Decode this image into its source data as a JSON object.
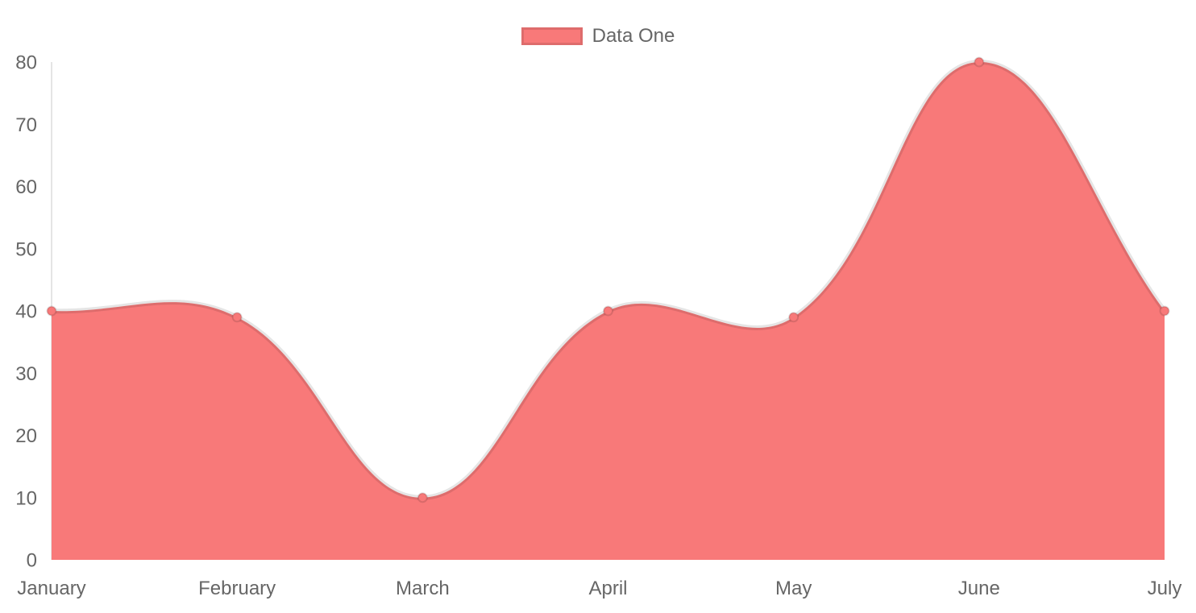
{
  "chart_data": {
    "type": "area",
    "title": "",
    "xlabel": "",
    "ylabel": "",
    "categories": [
      "January",
      "February",
      "March",
      "April",
      "May",
      "June",
      "July"
    ],
    "series": [
      {
        "name": "Data One",
        "values": [
          40,
          39,
          10,
          40,
          39,
          80,
          40
        ]
      }
    ],
    "ylim": [
      0,
      80
    ],
    "y_ticks": [
      0,
      10,
      20,
      30,
      40,
      50,
      60,
      70,
      80
    ],
    "grid": false,
    "legend_position": "top",
    "line_tension": 0.4,
    "colors": {
      "area_fill": "#f87979",
      "line_stroke": "rgba(0,0,0,0.1)",
      "point_fill": "#f87979",
      "point_border": "rgba(0,0,0,0.12)",
      "axis_line": "rgba(0,0,0,0.1)",
      "tick_text": "#666666",
      "legend_text": "#666666"
    }
  },
  "legend": {
    "items": [
      {
        "label": "Data One",
        "swatch_color": "#f87979"
      }
    ]
  }
}
